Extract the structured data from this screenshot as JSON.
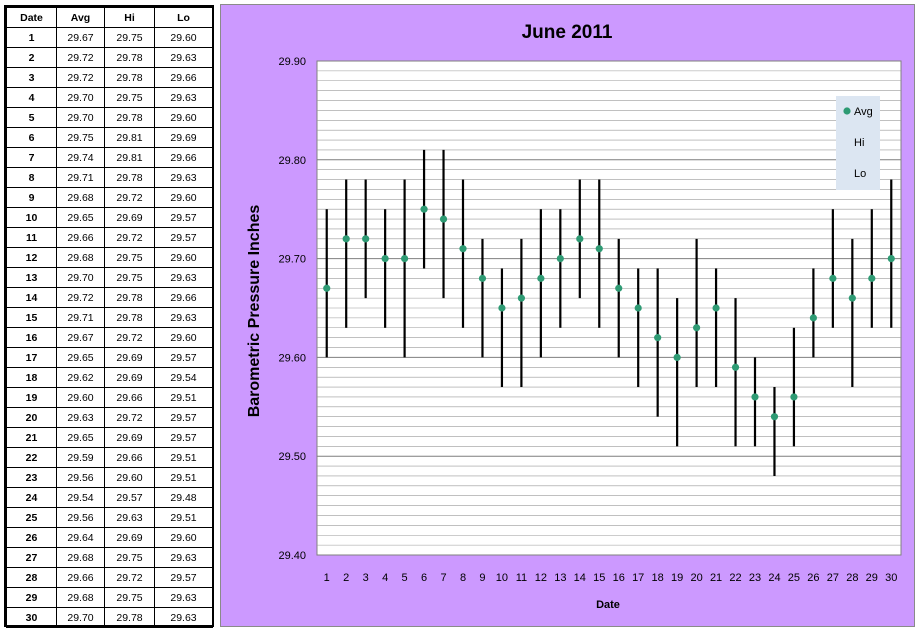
{
  "table": {
    "headers": [
      "Date",
      "Avg",
      "Hi",
      "Lo"
    ],
    "rows": [
      [
        "1",
        "29.67",
        "29.75",
        "29.60"
      ],
      [
        "2",
        "29.72",
        "29.78",
        "29.63"
      ],
      [
        "3",
        "29.72",
        "29.78",
        "29.66"
      ],
      [
        "4",
        "29.70",
        "29.75",
        "29.63"
      ],
      [
        "5",
        "29.70",
        "29.78",
        "29.60"
      ],
      [
        "6",
        "29.75",
        "29.81",
        "29.69"
      ],
      [
        "7",
        "29.74",
        "29.81",
        "29.66"
      ],
      [
        "8",
        "29.71",
        "29.78",
        "29.63"
      ],
      [
        "9",
        "29.68",
        "29.72",
        "29.60"
      ],
      [
        "10",
        "29.65",
        "29.69",
        "29.57"
      ],
      [
        "11",
        "29.66",
        "29.72",
        "29.57"
      ],
      [
        "12",
        "29.68",
        "29.75",
        "29.60"
      ],
      [
        "13",
        "29.70",
        "29.75",
        "29.63"
      ],
      [
        "14",
        "29.72",
        "29.78",
        "29.66"
      ],
      [
        "15",
        "29.71",
        "29.78",
        "29.63"
      ],
      [
        "16",
        "29.67",
        "29.72",
        "29.60"
      ],
      [
        "17",
        "29.65",
        "29.69",
        "29.57"
      ],
      [
        "18",
        "29.62",
        "29.69",
        "29.54"
      ],
      [
        "19",
        "29.60",
        "29.66",
        "29.51"
      ],
      [
        "20",
        "29.63",
        "29.72",
        "29.57"
      ],
      [
        "21",
        "29.65",
        "29.69",
        "29.57"
      ],
      [
        "22",
        "29.59",
        "29.66",
        "29.51"
      ],
      [
        "23",
        "29.56",
        "29.60",
        "29.51"
      ],
      [
        "24",
        "29.54",
        "29.57",
        "29.48"
      ],
      [
        "25",
        "29.56",
        "29.63",
        "29.51"
      ],
      [
        "26",
        "29.64",
        "29.69",
        "29.60"
      ],
      [
        "27",
        "29.68",
        "29.75",
        "29.63"
      ],
      [
        "28",
        "29.66",
        "29.72",
        "29.57"
      ],
      [
        "29",
        "29.68",
        "29.75",
        "29.63"
      ],
      [
        "30",
        "29.70",
        "29.78",
        "29.63"
      ]
    ]
  },
  "colors": {
    "chart_background": "#cc99ff",
    "plot_background": "#ffffff",
    "avg_marker": "#2e9b74",
    "range_line": "#000000",
    "gridline": "#9a9a9a",
    "legend_background": "#dce6f2"
  },
  "chart_data": {
    "type": "scatter",
    "title": "June 2011",
    "xlabel": "Date",
    "ylabel": "Barometric Pressure Inches",
    "ylim": [
      29.4,
      29.9
    ],
    "y_major_ticks": [
      "29.40",
      "29.50",
      "29.60",
      "29.70",
      "29.80",
      "29.90"
    ],
    "grid": true,
    "legend_position": "top-right",
    "legend": [
      "Avg",
      "Hi",
      "Lo"
    ],
    "categories": [
      "1",
      "2",
      "3",
      "4",
      "5",
      "6",
      "7",
      "8",
      "9",
      "10",
      "11",
      "12",
      "13",
      "14",
      "15",
      "16",
      "17",
      "18",
      "19",
      "20",
      "21",
      "22",
      "23",
      "24",
      "25",
      "26",
      "27",
      "28",
      "29",
      "30"
    ],
    "series": [
      {
        "name": "Avg",
        "values": [
          29.67,
          29.72,
          29.72,
          29.7,
          29.7,
          29.75,
          29.74,
          29.71,
          29.68,
          29.65,
          29.66,
          29.68,
          29.7,
          29.72,
          29.71,
          29.67,
          29.65,
          29.62,
          29.6,
          29.63,
          29.65,
          29.59,
          29.56,
          29.54,
          29.56,
          29.64,
          29.68,
          29.66,
          29.68,
          29.7
        ]
      },
      {
        "name": "Hi",
        "values": [
          29.75,
          29.78,
          29.78,
          29.75,
          29.78,
          29.81,
          29.81,
          29.78,
          29.72,
          29.69,
          29.72,
          29.75,
          29.75,
          29.78,
          29.78,
          29.72,
          29.69,
          29.69,
          29.66,
          29.72,
          29.69,
          29.66,
          29.6,
          29.57,
          29.63,
          29.69,
          29.75,
          29.72,
          29.75,
          29.78
        ]
      },
      {
        "name": "Lo",
        "values": [
          29.6,
          29.63,
          29.66,
          29.63,
          29.6,
          29.69,
          29.66,
          29.63,
          29.6,
          29.57,
          29.57,
          29.6,
          29.63,
          29.66,
          29.63,
          29.6,
          29.57,
          29.54,
          29.51,
          29.57,
          29.57,
          29.51,
          29.51,
          29.48,
          29.51,
          29.6,
          29.63,
          29.57,
          29.63,
          29.63
        ]
      }
    ]
  }
}
